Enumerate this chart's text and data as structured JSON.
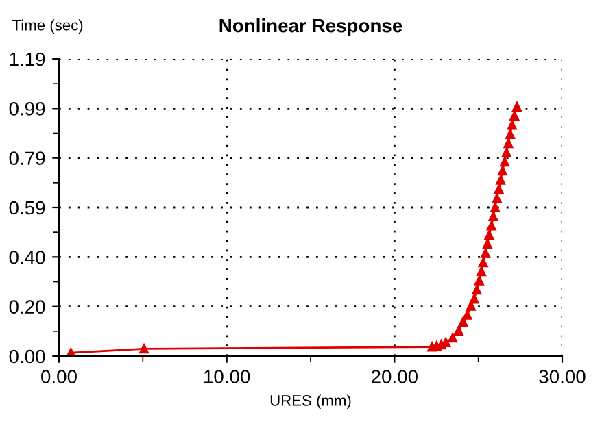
{
  "chart_data": {
    "type": "line",
    "title": "Nonlinear Response",
    "xlabel": "URES (mm)",
    "ylabel": "Time (sec)",
    "xlim": [
      0,
      30
    ],
    "ylim": [
      0,
      1.19
    ],
    "xticks": [
      {
        "value": 0,
        "label": "0.00"
      },
      {
        "value": 5,
        "label": null
      },
      {
        "value": 10,
        "label": "10.00"
      },
      {
        "value": 15,
        "label": null
      },
      {
        "value": 20,
        "label": "20.00"
      },
      {
        "value": 25,
        "label": null
      },
      {
        "value": 30,
        "label": "30.00"
      }
    ],
    "yticks": [
      {
        "value": 0,
        "label": "0.00"
      },
      {
        "value": 0.0992,
        "label": null
      },
      {
        "value": 0.1983,
        "label": "0.20"
      },
      {
        "value": 0.2975,
        "label": null
      },
      {
        "value": 0.3967,
        "label": "0.40"
      },
      {
        "value": 0.4958,
        "label": null
      },
      {
        "value": 0.595,
        "label": "0.59"
      },
      {
        "value": 0.6942,
        "label": null
      },
      {
        "value": 0.7933,
        "label": "0.79"
      },
      {
        "value": 0.8925,
        "label": null
      },
      {
        "value": 0.9917,
        "label": "0.99"
      },
      {
        "value": 1.0908,
        "label": null
      },
      {
        "value": 1.19,
        "label": "1.19"
      }
    ],
    "grid": true,
    "marker": "triangle",
    "line_style": "solid",
    "series": [
      {
        "color": "#e00000",
        "x": [
          0.71,
          5.07,
          22.24,
          22.51,
          22.79,
          23.06,
          23.47,
          23.82,
          24.09,
          24.34,
          24.56,
          24.75,
          24.91,
          25.05,
          25.18,
          25.29,
          25.43,
          25.54,
          25.65,
          25.78,
          25.89,
          26.0,
          26.11,
          26.22,
          26.33,
          26.44,
          26.57,
          26.68,
          26.79,
          26.9,
          27.01,
          27.15,
          27.3
        ],
        "values": [
          0.013,
          0.029,
          0.037,
          0.04,
          0.046,
          0.055,
          0.073,
          0.101,
          0.137,
          0.165,
          0.201,
          0.229,
          0.265,
          0.302,
          0.339,
          0.375,
          0.412,
          0.449,
          0.485,
          0.522,
          0.559,
          0.595,
          0.632,
          0.668,
          0.705,
          0.742,
          0.778,
          0.815,
          0.852,
          0.888,
          0.925,
          0.962,
          0.998
        ]
      }
    ]
  }
}
